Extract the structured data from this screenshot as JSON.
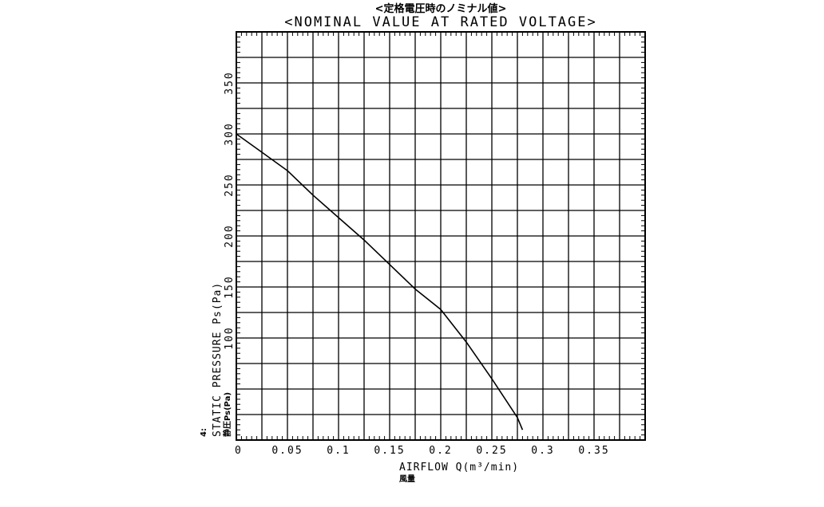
{
  "chart_data": {
    "type": "line",
    "title": "<定格電圧時のノミナル値>",
    "subtitle": "<NOMINAL VALUE AT RATED VOLTAGE>",
    "xlabel": "AIRFLOW Q(m³/min)",
    "xlabel_jp": "風量",
    "ylabel": "STATIC PRESSURE Ps(Pa)",
    "ylabel_jp": "静圧Ps(Pa)",
    "corner_mark": "4:",
    "xlim": [
      0,
      0.4
    ],
    "ylim": [
      0,
      400
    ],
    "x_ticks": [
      "0",
      "0.05",
      "0.1",
      "0.15",
      "0.2",
      "0.25",
      "0.3",
      "0.35"
    ],
    "x_tick_values": [
      0,
      0.05,
      0.1,
      0.15,
      0.2,
      0.25,
      0.3,
      0.35
    ],
    "y_ticks": [
      "100",
      "150",
      "200",
      "250",
      "300",
      "350"
    ],
    "y_tick_values": [
      100,
      150,
      200,
      250,
      300,
      350
    ],
    "grid": true,
    "series": [
      {
        "x": [
          0,
          0.025,
          0.05,
          0.075,
          0.1,
          0.125,
          0.15,
          0.175,
          0.2,
          0.225,
          0.25,
          0.275,
          0.28
        ],
        "y": [
          300,
          282,
          264,
          240,
          218,
          196,
          172,
          148,
          128,
          96,
          60,
          22,
          10
        ]
      }
    ]
  }
}
